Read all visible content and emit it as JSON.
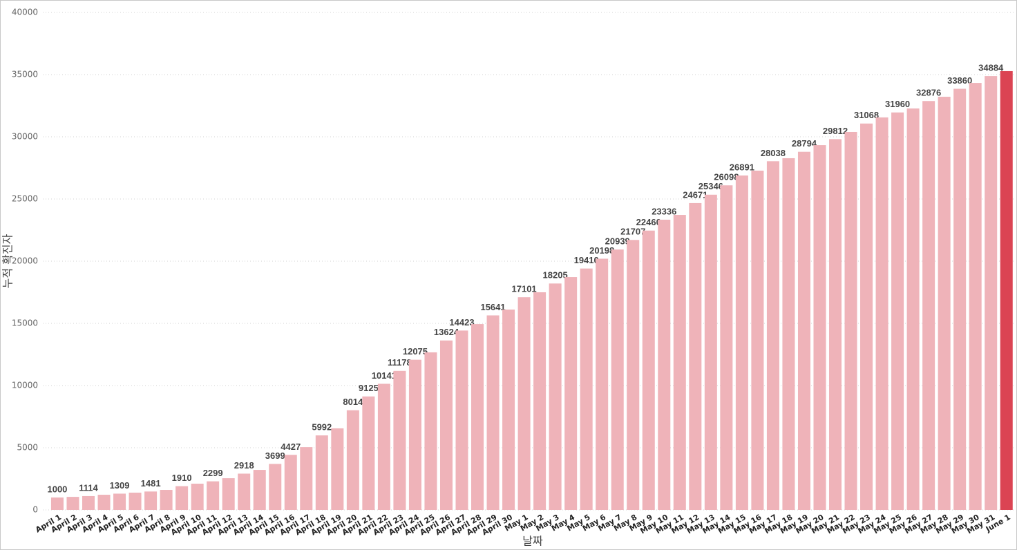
{
  "chart_data": {
    "type": "bar",
    "x_label": "날짜",
    "y_label": "누적 확진자",
    "categories": [
      "April 1",
      "April 2",
      "April 3",
      "April 4",
      "April 5",
      "April 6",
      "April 7",
      "April 8",
      "April 9",
      "April 10",
      "April 11",
      "April 12",
      "April 13",
      "April 14",
      "April 15",
      "April 16",
      "April 17",
      "April 18",
      "April 19",
      "April 20",
      "April 21",
      "April 22",
      "April 23",
      "April 24",
      "April 25",
      "April 26",
      "April 27",
      "April 28",
      "April 29",
      "April 30",
      "May 1",
      "May 2",
      "May 3",
      "May 4",
      "May 5",
      "May 6",
      "May 7",
      "May 8",
      "May 9",
      "May 10",
      "May 11",
      "May 12",
      "May 13",
      "May 14",
      "May 15",
      "May 16",
      "May 17",
      "May 18",
      "May 19",
      "May 20",
      "May 21",
      "May 22",
      "May 23",
      "May 24",
      "May 25",
      "May 26",
      "May 27",
      "May 28",
      "May 29",
      "May 30",
      "May 31",
      "June 1"
    ],
    "values": [
      1000,
      1050,
      1114,
      1220,
      1309,
      1390,
      1481,
      1610,
      1910,
      2110,
      2299,
      2550,
      2918,
      3220,
      3699,
      4427,
      5050,
      5992,
      6560,
      8014,
      9125,
      10141,
      11178,
      12075,
      12670,
      13624,
      14423,
      14940,
      15641,
      16110,
      17101,
      17500,
      18205,
      18720,
      19410,
      20198,
      20939,
      21707,
      22460,
      23336,
      23720,
      24671,
      25346,
      26098,
      26891,
      27280,
      28038,
      28280,
      28794,
      29330,
      29812,
      30390,
      31068,
      31560,
      31960,
      32280,
      32876,
      33220,
      33860,
      34330,
      34884,
      35280
    ],
    "value_labels": [
      "1000",
      null,
      "1114",
      null,
      "1309",
      null,
      "1481",
      null,
      "1910",
      null,
      "2299",
      null,
      "2918",
      null,
      "3699",
      "4427",
      null,
      "5992",
      null,
      "8014",
      "9125",
      "10141",
      "11178",
      "12075",
      null,
      "13624",
      "14423",
      null,
      "15641",
      null,
      "17101",
      null,
      "18205",
      null,
      "19410",
      "20198",
      "20939",
      "21707",
      "22460",
      "23336",
      null,
      "24671",
      "25346",
      "26098",
      "26891",
      null,
      "28038",
      null,
      "28794",
      null,
      "29812",
      null,
      "31068",
      null,
      "31960",
      null,
      "32876",
      null,
      "33860",
      null,
      "34884",
      null
    ],
    "colors": [
      "#efb3b9",
      "#efb3b9",
      "#efb3b9",
      "#efb3b9",
      "#efb3b9",
      "#efb3b9",
      "#efb3b9",
      "#efb3b9",
      "#efb3b9",
      "#efb3b9",
      "#efb3b9",
      "#efb3b9",
      "#efb3b9",
      "#efb3b9",
      "#efb3b9",
      "#efb3b9",
      "#efb3b9",
      "#efb3b9",
      "#efb3b9",
      "#efb3b9",
      "#efb3b9",
      "#efb3b9",
      "#efb3b9",
      "#efb3b9",
      "#efb3b9",
      "#efb3b9",
      "#efb3b9",
      "#efb3b9",
      "#efb3b9",
      "#efb3b9",
      "#efb3b9",
      "#efb3b9",
      "#efb3b9",
      "#efb3b9",
      "#efb3b9",
      "#efb3b9",
      "#efb3b9",
      "#efb3b9",
      "#efb3b9",
      "#efb3b9",
      "#efb3b9",
      "#efb3b9",
      "#efb3b9",
      "#efb3b9",
      "#efb3b9",
      "#efb3b9",
      "#efb3b9",
      "#efb3b9",
      "#efb3b9",
      "#efb3b9",
      "#efb3b9",
      "#efb3b9",
      "#efb3b9",
      "#efb3b9",
      "#efb3b9",
      "#efb3b9",
      "#efb3b9",
      "#efb3b9",
      "#efb3b9",
      "#efb3b9",
      "#efb3b9",
      "#db4453"
    ],
    "ylim": [
      0,
      40000
    ],
    "yticks": [
      0,
      5000,
      10000,
      15000,
      20000,
      25000,
      30000,
      35000,
      40000
    ],
    "grid": true
  }
}
